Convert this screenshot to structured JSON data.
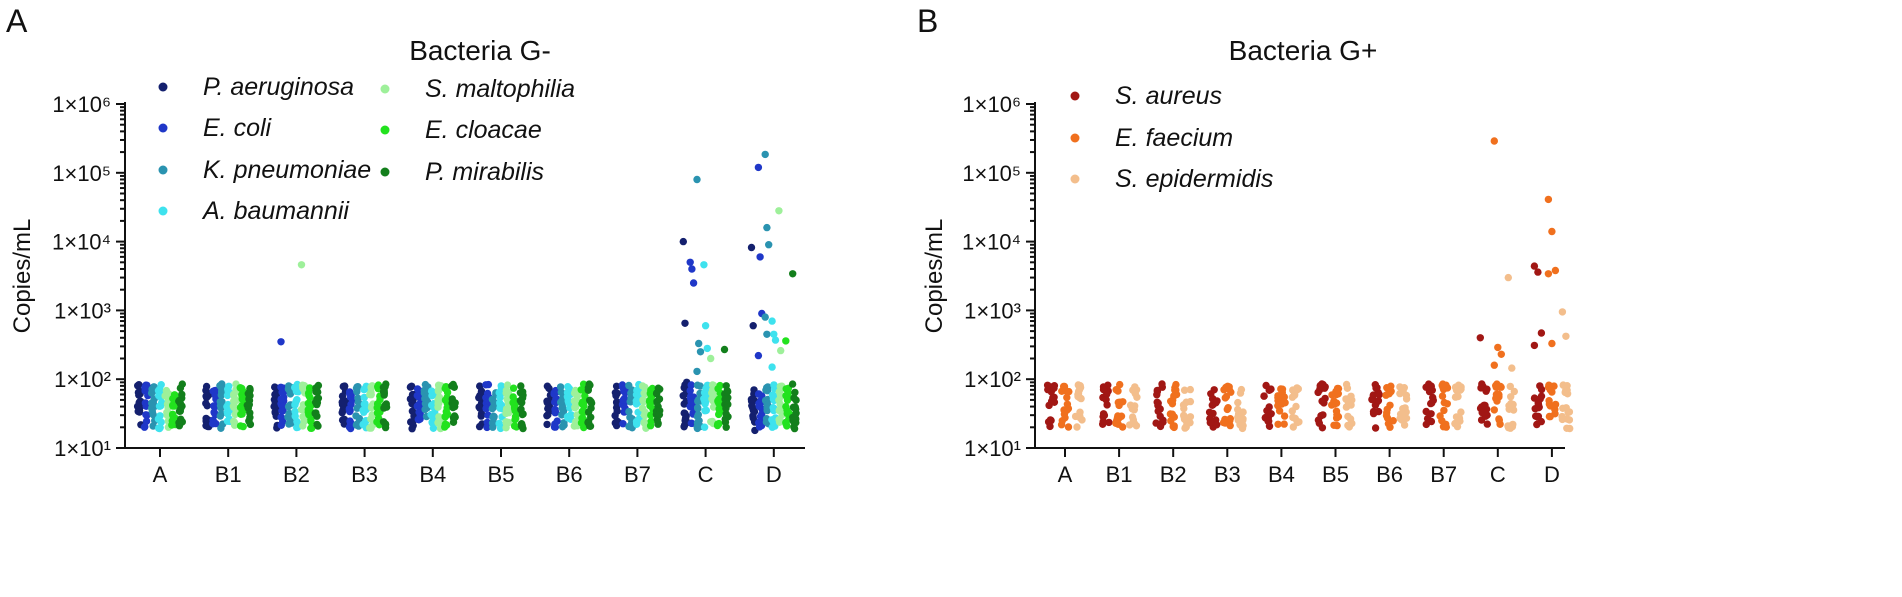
{
  "chart_data": [
    {
      "type": "scatter",
      "panel": "A",
      "title": "Bacteria G-",
      "ylabel": "Copies/mL",
      "yscale": "log",
      "ylim": [
        10,
        1000000
      ],
      "yticks": [
        "1×10¹",
        "1×10²",
        "1×10³",
        "1×10⁴",
        "1×10⁵",
        "1×10⁶"
      ],
      "categories": [
        "A",
        "B1",
        "B2",
        "B3",
        "B4",
        "B5",
        "B6",
        "B7",
        "C",
        "D"
      ],
      "series": [
        {
          "name": "P. aeruginosa",
          "color": "#14206e",
          "outliers": {
            "B2": [],
            "C": [
              10000,
              650,
              90
            ],
            "D": [
              8200,
              600,
              18
            ]
          }
        },
        {
          "name": "E. coli",
          "color": "#1f37c8",
          "outliers": {
            "B2": [
              350
            ],
            "C": [
              5000,
              4000,
              2500
            ],
            "D": [
              120000,
              6000,
              900,
              220
            ]
          }
        },
        {
          "name": "K. pneumoniae",
          "color": "#2a93b0",
          "outliers": {
            "C": [
              80000,
              330,
              250,
              130
            ],
            "D": [
              185000,
              16000,
              9000,
              800,
              450
            ]
          }
        },
        {
          "name": "A. baumannii",
          "color": "#3ee2ee",
          "outliers": {
            "C": [
              4600,
              600,
              280
            ],
            "D": [
              700,
              450,
              370,
              150
            ]
          }
        },
        {
          "name": "S. maltophilia",
          "color": "#9ef09a",
          "outliers": {
            "B2": [
              4600
            ],
            "C": [
              200
            ],
            "D": [
              28000,
              260
            ]
          }
        },
        {
          "name": "E. cloacae",
          "color": "#22e21e",
          "outliers": {
            "D": [
              360
            ]
          }
        },
        {
          "name": "P. mirabilis",
          "color": "#137f1c",
          "outliers": {
            "C": [
              270
            ],
            "D": [
              3400
            ]
          }
        }
      ]
    },
    {
      "type": "scatter",
      "panel": "B",
      "title": "Bacteria G+",
      "ylabel": "Copies/mL",
      "yscale": "log",
      "ylim": [
        10,
        1000000
      ],
      "yticks": [
        "1×10¹",
        "1×10²",
        "1×10³",
        "1×10⁴",
        "1×10⁵",
        "1×10⁶"
      ],
      "categories": [
        "A",
        "B1",
        "B2",
        "B3",
        "B4",
        "B5",
        "B6",
        "B7",
        "C",
        "D"
      ],
      "series": [
        {
          "name": "S. aureus",
          "color": "#a11714",
          "outliers": {
            "C": [
              400
            ],
            "D": [
              4400,
              3600,
              470,
              310,
              28
            ]
          }
        },
        {
          "name": "E. faecium",
          "color": "#f0701e",
          "outliers": {
            "C": [
              290000,
              290,
              230,
              160
            ],
            "D": [
              41000,
              14000,
              3800,
              3400,
              330
            ]
          }
        },
        {
          "name": "S. epidermidis",
          "color": "#f3be8c",
          "outliers": {
            "C": [
              3000,
              145
            ],
            "D": [
              950,
              420
            ]
          }
        }
      ]
    }
  ]
}
